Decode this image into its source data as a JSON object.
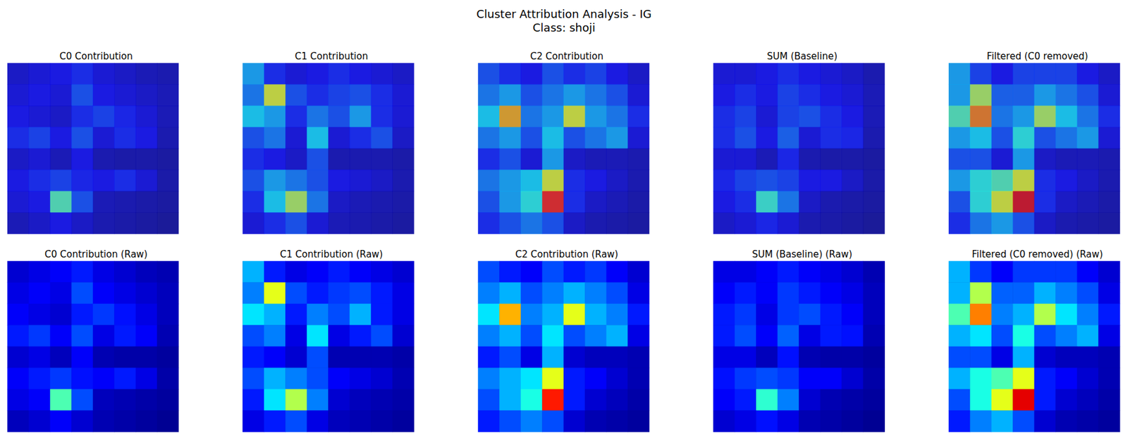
{
  "chart_data": {
    "type": "heatmap",
    "title": "Cluster Attribution Analysis - IG",
    "subtitle": "Class: shoji",
    "tick_labels": false,
    "color_range": [
      0,
      1
    ],
    "panels": [
      {
        "title": "C0 Contribution",
        "overlay": true,
        "values": [
          [
            0.08,
            0.1,
            0.12,
            0.15,
            0.1,
            0.08,
            0.06,
            0.05
          ],
          [
            0.1,
            0.12,
            0.1,
            0.2,
            0.12,
            0.1,
            0.08,
            0.06
          ],
          [
            0.12,
            0.1,
            0.08,
            0.15,
            0.18,
            0.14,
            0.1,
            0.06
          ],
          [
            0.15,
            0.18,
            0.12,
            0.2,
            0.1,
            0.15,
            0.12,
            0.05
          ],
          [
            0.08,
            0.1,
            0.06,
            0.12,
            0.05,
            0.04,
            0.04,
            0.03
          ],
          [
            0.12,
            0.15,
            0.18,
            0.14,
            0.12,
            0.15,
            0.1,
            0.04
          ],
          [
            0.1,
            0.12,
            0.45,
            0.2,
            0.06,
            0.05,
            0.04,
            0.03
          ],
          [
            0.06,
            0.08,
            0.12,
            0.08,
            0.05,
            0.04,
            0.03,
            0.02
          ]
        ]
      },
      {
        "title": "C1 Contribution",
        "overlay": true,
        "values": [
          [
            0.3,
            0.15,
            0.1,
            0.12,
            0.15,
            0.12,
            0.1,
            0.08
          ],
          [
            0.25,
            0.6,
            0.2,
            0.15,
            0.18,
            0.2,
            0.15,
            0.1
          ],
          [
            0.35,
            0.3,
            0.15,
            0.25,
            0.2,
            0.3,
            0.15,
            0.1
          ],
          [
            0.2,
            0.25,
            0.1,
            0.35,
            0.1,
            0.15,
            0.2,
            0.08
          ],
          [
            0.15,
            0.12,
            0.08,
            0.2,
            0.05,
            0.05,
            0.05,
            0.04
          ],
          [
            0.2,
            0.3,
            0.25,
            0.2,
            0.12,
            0.1,
            0.08,
            0.05
          ],
          [
            0.15,
            0.35,
            0.55,
            0.25,
            0.08,
            0.06,
            0.05,
            0.04
          ],
          [
            0.1,
            0.15,
            0.2,
            0.1,
            0.06,
            0.05,
            0.04,
            0.03
          ]
        ]
      },
      {
        "title": "C2 Contribution",
        "overlay": true,
        "values": [
          [
            0.2,
            0.15,
            0.12,
            0.2,
            0.15,
            0.18,
            0.12,
            0.08
          ],
          [
            0.25,
            0.3,
            0.2,
            0.25,
            0.3,
            0.25,
            0.2,
            0.1
          ],
          [
            0.35,
            0.7,
            0.25,
            0.3,
            0.6,
            0.3,
            0.25,
            0.15
          ],
          [
            0.25,
            0.3,
            0.2,
            0.35,
            0.2,
            0.25,
            0.3,
            0.1
          ],
          [
            0.15,
            0.2,
            0.1,
            0.3,
            0.08,
            0.06,
            0.06,
            0.05
          ],
          [
            0.25,
            0.3,
            0.35,
            0.6,
            0.15,
            0.12,
            0.08,
            0.05
          ],
          [
            0.2,
            0.3,
            0.4,
            0.85,
            0.15,
            0.08,
            0.06,
            0.04
          ],
          [
            0.15,
            0.2,
            0.25,
            0.2,
            0.08,
            0.05,
            0.04,
            0.03
          ]
        ]
      },
      {
        "title": "SUM (Baseline)",
        "overlay": true,
        "values": [
          [
            0.1,
            0.1,
            0.12,
            0.15,
            0.12,
            0.1,
            0.08,
            0.05
          ],
          [
            0.12,
            0.15,
            0.12,
            0.18,
            0.15,
            0.12,
            0.1,
            0.06
          ],
          [
            0.15,
            0.18,
            0.1,
            0.18,
            0.2,
            0.15,
            0.12,
            0.06
          ],
          [
            0.15,
            0.2,
            0.12,
            0.22,
            0.1,
            0.15,
            0.14,
            0.05
          ],
          [
            0.1,
            0.1,
            0.06,
            0.14,
            0.05,
            0.04,
            0.04,
            0.03
          ],
          [
            0.14,
            0.18,
            0.2,
            0.18,
            0.12,
            0.12,
            0.08,
            0.04
          ],
          [
            0.12,
            0.15,
            0.42,
            0.25,
            0.08,
            0.05,
            0.04,
            0.03
          ],
          [
            0.08,
            0.1,
            0.14,
            0.1,
            0.05,
            0.04,
            0.03,
            0.02
          ]
        ]
      },
      {
        "title": "Filtered (C0 removed)",
        "overlay": true,
        "values": [
          [
            0.3,
            0.18,
            0.12,
            0.18,
            0.18,
            0.18,
            0.12,
            0.08
          ],
          [
            0.3,
            0.55,
            0.22,
            0.22,
            0.3,
            0.25,
            0.2,
            0.1
          ],
          [
            0.45,
            0.75,
            0.25,
            0.3,
            0.55,
            0.35,
            0.25,
            0.15
          ],
          [
            0.3,
            0.35,
            0.2,
            0.4,
            0.2,
            0.25,
            0.3,
            0.1
          ],
          [
            0.2,
            0.2,
            0.1,
            0.3,
            0.08,
            0.06,
            0.06,
            0.05
          ],
          [
            0.3,
            0.4,
            0.45,
            0.6,
            0.15,
            0.12,
            0.08,
            0.05
          ],
          [
            0.2,
            0.4,
            0.6,
            0.9,
            0.15,
            0.08,
            0.06,
            0.04
          ],
          [
            0.15,
            0.25,
            0.3,
            0.2,
            0.08,
            0.05,
            0.04,
            0.03
          ]
        ]
      },
      {
        "title": "C0 Contribution (Raw)",
        "overlay": false,
        "values": [
          [
            0.08,
            0.1,
            0.12,
            0.15,
            0.1,
            0.08,
            0.06,
            0.05
          ],
          [
            0.1,
            0.12,
            0.1,
            0.2,
            0.12,
            0.1,
            0.08,
            0.06
          ],
          [
            0.12,
            0.1,
            0.08,
            0.15,
            0.18,
            0.14,
            0.1,
            0.06
          ],
          [
            0.15,
            0.18,
            0.12,
            0.2,
            0.1,
            0.15,
            0.12,
            0.05
          ],
          [
            0.08,
            0.1,
            0.06,
            0.12,
            0.05,
            0.04,
            0.04,
            0.03
          ],
          [
            0.12,
            0.15,
            0.18,
            0.14,
            0.12,
            0.15,
            0.1,
            0.04
          ],
          [
            0.1,
            0.12,
            0.45,
            0.2,
            0.06,
            0.05,
            0.04,
            0.03
          ],
          [
            0.06,
            0.08,
            0.12,
            0.08,
            0.05,
            0.04,
            0.03,
            0.02
          ]
        ]
      },
      {
        "title": "C1 Contribution (Raw)",
        "overlay": false,
        "values": [
          [
            0.3,
            0.15,
            0.1,
            0.12,
            0.15,
            0.12,
            0.1,
            0.08
          ],
          [
            0.25,
            0.6,
            0.2,
            0.15,
            0.18,
            0.2,
            0.15,
            0.1
          ],
          [
            0.35,
            0.3,
            0.15,
            0.25,
            0.2,
            0.3,
            0.15,
            0.1
          ],
          [
            0.2,
            0.25,
            0.1,
            0.35,
            0.1,
            0.15,
            0.2,
            0.08
          ],
          [
            0.15,
            0.12,
            0.08,
            0.2,
            0.05,
            0.05,
            0.05,
            0.04
          ],
          [
            0.2,
            0.3,
            0.25,
            0.2,
            0.12,
            0.1,
            0.08,
            0.05
          ],
          [
            0.15,
            0.35,
            0.55,
            0.25,
            0.08,
            0.06,
            0.05,
            0.04
          ],
          [
            0.1,
            0.15,
            0.2,
            0.1,
            0.06,
            0.05,
            0.04,
            0.03
          ]
        ]
      },
      {
        "title": "C2 Contribution (Raw)",
        "overlay": false,
        "values": [
          [
            0.2,
            0.15,
            0.12,
            0.2,
            0.15,
            0.18,
            0.12,
            0.08
          ],
          [
            0.25,
            0.3,
            0.2,
            0.25,
            0.3,
            0.25,
            0.2,
            0.1
          ],
          [
            0.35,
            0.7,
            0.25,
            0.3,
            0.6,
            0.3,
            0.25,
            0.15
          ],
          [
            0.25,
            0.3,
            0.2,
            0.35,
            0.2,
            0.25,
            0.3,
            0.1
          ],
          [
            0.15,
            0.2,
            0.1,
            0.3,
            0.08,
            0.06,
            0.06,
            0.05
          ],
          [
            0.25,
            0.3,
            0.35,
            0.6,
            0.15,
            0.12,
            0.08,
            0.05
          ],
          [
            0.2,
            0.3,
            0.4,
            0.85,
            0.15,
            0.08,
            0.06,
            0.04
          ],
          [
            0.15,
            0.2,
            0.25,
            0.2,
            0.08,
            0.05,
            0.04,
            0.03
          ]
        ]
      },
      {
        "title": "SUM (Baseline) (Raw)",
        "overlay": false,
        "values": [
          [
            0.1,
            0.1,
            0.12,
            0.15,
            0.12,
            0.1,
            0.08,
            0.05
          ],
          [
            0.12,
            0.15,
            0.12,
            0.18,
            0.15,
            0.12,
            0.1,
            0.06
          ],
          [
            0.15,
            0.18,
            0.1,
            0.18,
            0.2,
            0.15,
            0.12,
            0.06
          ],
          [
            0.15,
            0.2,
            0.12,
            0.22,
            0.1,
            0.15,
            0.14,
            0.05
          ],
          [
            0.1,
            0.1,
            0.06,
            0.14,
            0.05,
            0.04,
            0.04,
            0.03
          ],
          [
            0.14,
            0.18,
            0.2,
            0.18,
            0.12,
            0.12,
            0.08,
            0.04
          ],
          [
            0.12,
            0.15,
            0.42,
            0.25,
            0.08,
            0.05,
            0.04,
            0.03
          ],
          [
            0.08,
            0.1,
            0.14,
            0.1,
            0.05,
            0.04,
            0.03,
            0.02
          ]
        ]
      },
      {
        "title": "Filtered (C0 removed) (Raw)",
        "overlay": false,
        "values": [
          [
            0.3,
            0.18,
            0.12,
            0.18,
            0.18,
            0.18,
            0.12,
            0.08
          ],
          [
            0.3,
            0.55,
            0.22,
            0.22,
            0.3,
            0.25,
            0.2,
            0.1
          ],
          [
            0.45,
            0.75,
            0.25,
            0.3,
            0.55,
            0.35,
            0.25,
            0.15
          ],
          [
            0.3,
            0.35,
            0.2,
            0.4,
            0.2,
            0.25,
            0.3,
            0.1
          ],
          [
            0.2,
            0.2,
            0.1,
            0.3,
            0.08,
            0.06,
            0.06,
            0.05
          ],
          [
            0.3,
            0.4,
            0.45,
            0.6,
            0.15,
            0.12,
            0.08,
            0.05
          ],
          [
            0.2,
            0.4,
            0.6,
            0.9,
            0.15,
            0.08,
            0.06,
            0.04
          ],
          [
            0.15,
            0.25,
            0.3,
            0.2,
            0.08,
            0.05,
            0.04,
            0.03
          ]
        ]
      }
    ]
  }
}
